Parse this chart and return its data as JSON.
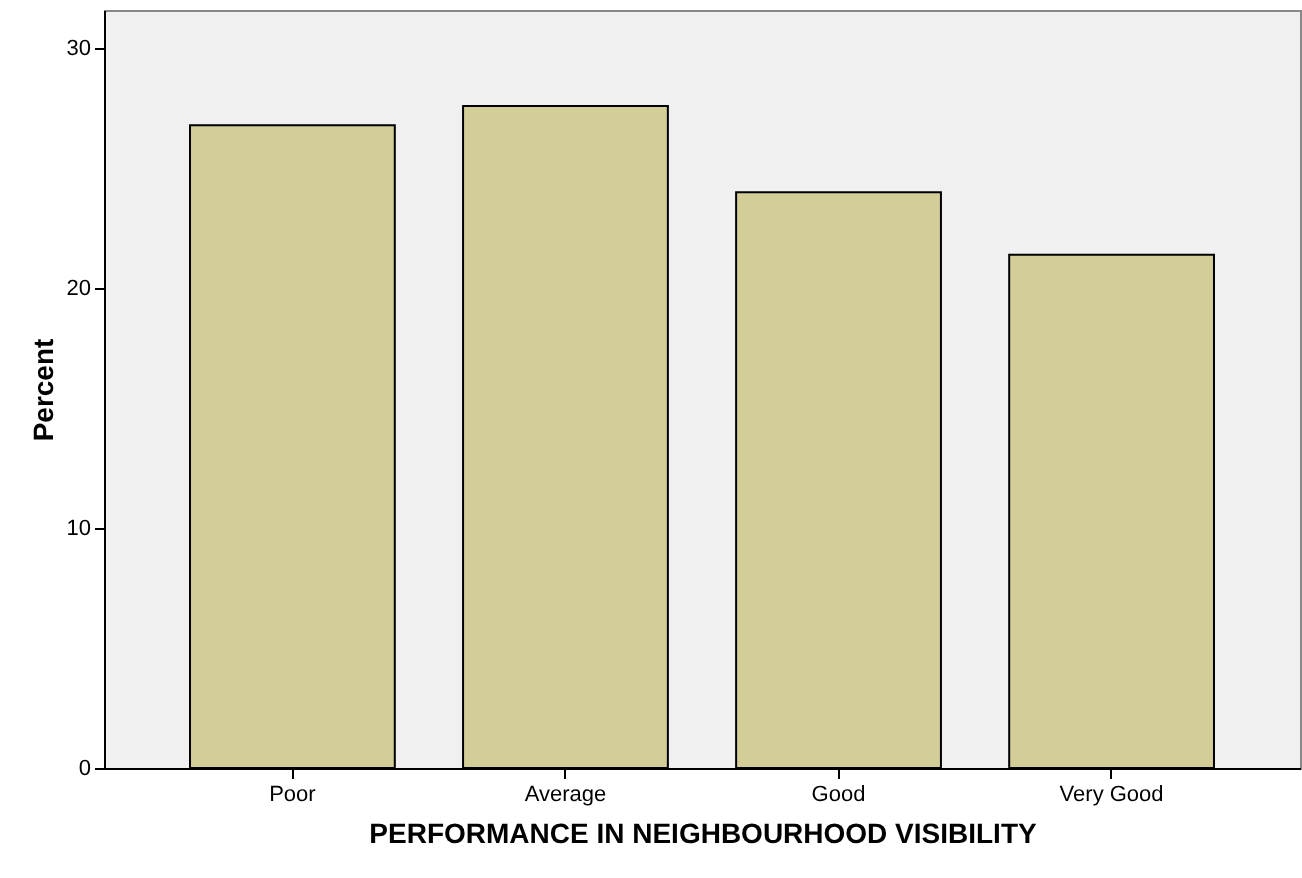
{
  "chart_data": {
    "type": "bar",
    "xlabel": "PERFORMANCE IN NEIGHBOURHOOD VISIBILITY",
    "ylabel": "Percent",
    "categories": [
      "Poor",
      "Average",
      "Good",
      "Very Good"
    ],
    "values": [
      26.8,
      27.6,
      24.0,
      21.4
    ],
    "color": "#d3ce97",
    "ylim": [
      0,
      31.6
    ],
    "yticks": [
      0,
      10,
      20,
      30
    ],
    "grid": false
  }
}
